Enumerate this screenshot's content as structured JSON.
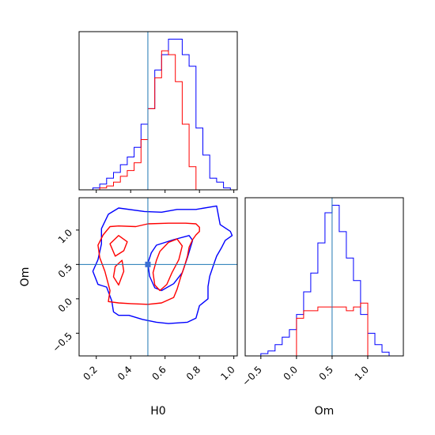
{
  "chart_data": {
    "type": "corner",
    "parameters": [
      "H0",
      "Om"
    ],
    "truths": {
      "H0": 0.5,
      "Om": 0.5
    },
    "colors": {
      "run_a": "#0000ff",
      "run_b": "#ff0000",
      "truth": "#1f77b4",
      "axes": "#000000"
    },
    "h0_marginal": {
      "xlim": [
        0.1,
        1.02
      ],
      "bin_edges": [
        0.1,
        0.14,
        0.18,
        0.22,
        0.26,
        0.3,
        0.34,
        0.38,
        0.42,
        0.46,
        0.5,
        0.54,
        0.58,
        0.62,
        0.66,
        0.7,
        0.74,
        0.78,
        0.82,
        0.86,
        0.9,
        0.94,
        0.98,
        1.02
      ],
      "series": [
        {
          "values": [
            0,
            0,
            0.5,
            1.5,
            3,
            4.5,
            6.5,
            8.5,
            11,
            17,
            21,
            31,
            35,
            39,
            39,
            35,
            32,
            16,
            9,
            3,
            2,
            0.5,
            0
          ]
        },
        {
          "values": [
            0,
            0,
            0,
            0.5,
            1,
            2,
            3.5,
            5,
            7,
            13,
            21,
            29,
            36,
            35,
            28,
            17,
            6,
            0,
            0,
            0,
            0,
            0,
            0
          ]
        }
      ]
    },
    "om_marginal": {
      "xlim": [
        -0.72,
        1.5
      ],
      "bin_edges": [
        -0.6,
        -0.5,
        -0.4,
        -0.3,
        -0.2,
        -0.1,
        0.0,
        0.1,
        0.2,
        0.3,
        0.4,
        0.5,
        0.6,
        0.7,
        0.8,
        0.9,
        1.0,
        1.1,
        1.2,
        1.3,
        1.4
      ],
      "series": [
        {
          "values": [
            0,
            0.6,
            1.3,
            3,
            5,
            7,
            11,
            17,
            22,
            30,
            38,
            40,
            33,
            26,
            20,
            11,
            6,
            3,
            1,
            0
          ]
        },
        {
          "values": [
            0,
            0,
            0,
            0,
            0,
            0,
            10,
            12,
            12,
            13,
            13,
            13,
            13,
            12,
            13,
            14,
            0,
            0,
            0,
            0
          ]
        }
      ]
    },
    "joint": {
      "xlim": [
        0.1,
        1.02
      ],
      "ylim": [
        -0.83,
        1.47
      ],
      "series": [
        {
          "contours": [
            [
              [
                0.33,
                1.32
              ],
              [
                0.48,
                1.27
              ],
              [
                0.58,
                1.26
              ],
              [
                0.67,
                1.3
              ],
              [
                0.78,
                1.3
              ],
              [
                0.9,
                1.35
              ],
              [
                0.92,
                1.08
              ],
              [
                0.98,
                0.98
              ],
              [
                0.99,
                0.92
              ],
              [
                0.95,
                0.85
              ],
              [
                0.93,
                0.75
              ],
              [
                0.9,
                0.62
              ],
              [
                0.88,
                0.48
              ],
              [
                0.86,
                0.33
              ],
              [
                0.85,
                0.18
              ],
              [
                0.85,
                0.0
              ],
              [
                0.8,
                -0.1
              ],
              [
                0.78,
                -0.28
              ],
              [
                0.73,
                -0.34
              ],
              [
                0.62,
                -0.36
              ],
              [
                0.55,
                -0.34
              ],
              [
                0.47,
                -0.3
              ],
              [
                0.39,
                -0.24
              ],
              [
                0.33,
                -0.24
              ],
              [
                0.3,
                -0.19
              ],
              [
                0.29,
                -0.03
              ],
              [
                0.26,
                0.17
              ],
              [
                0.21,
                0.21
              ],
              [
                0.18,
                0.4
              ],
              [
                0.21,
                0.57
              ],
              [
                0.23,
                0.8
              ],
              [
                0.23,
                1.02
              ],
              [
                0.27,
                1.23
              ],
              [
                0.33,
                1.32
              ]
            ],
            [
              [
                0.55,
                0.78
              ],
              [
                0.65,
                0.86
              ],
              [
                0.74,
                0.92
              ],
              [
                0.76,
                0.85
              ],
              [
                0.73,
                0.6
              ],
              [
                0.7,
                0.38
              ],
              [
                0.65,
                0.22
              ],
              [
                0.58,
                0.12
              ],
              [
                0.54,
                0.16
              ],
              [
                0.51,
                0.33
              ],
              [
                0.5,
                0.52
              ],
              [
                0.52,
                0.67
              ],
              [
                0.55,
                0.78
              ]
            ]
          ]
        },
        {
          "contours": [
            [
              [
                0.33,
                1.06
              ],
              [
                0.43,
                1.05
              ],
              [
                0.5,
                1.09
              ],
              [
                0.62,
                1.1
              ],
              [
                0.72,
                1.1
              ],
              [
                0.78,
                1.09
              ],
              [
                0.8,
                1.04
              ],
              [
                0.8,
                0.98
              ],
              [
                0.78,
                0.93
              ],
              [
                0.76,
                0.86
              ],
              [
                0.74,
                0.75
              ],
              [
                0.73,
                0.62
              ],
              [
                0.71,
                0.45
              ],
              [
                0.69,
                0.31
              ],
              [
                0.67,
                0.14
              ],
              [
                0.65,
                0.02
              ],
              [
                0.58,
                -0.06
              ],
              [
                0.5,
                -0.08
              ],
              [
                0.4,
                -0.07
              ],
              [
                0.33,
                -0.06
              ],
              [
                0.27,
                -0.04
              ],
              [
                0.28,
                0.12
              ],
              [
                0.25,
                0.4
              ],
              [
                0.22,
                0.6
              ],
              [
                0.21,
                0.78
              ],
              [
                0.24,
                0.93
              ],
              [
                0.28,
                1.05
              ],
              [
                0.33,
                1.06
              ]
            ],
            [
              [
                0.57,
                0.69
              ],
              [
                0.62,
                0.82
              ],
              [
                0.67,
                0.87
              ],
              [
                0.7,
                0.77
              ],
              [
                0.68,
                0.57
              ],
              [
                0.64,
                0.38
              ],
              [
                0.61,
                0.21
              ],
              [
                0.57,
                0.12
              ],
              [
                0.54,
                0.2
              ],
              [
                0.53,
                0.38
              ],
              [
                0.55,
                0.56
              ],
              [
                0.57,
                0.69
              ]
            ],
            [
              [
                0.28,
                0.8
              ],
              [
                0.33,
                0.92
              ],
              [
                0.38,
                0.83
              ],
              [
                0.36,
                0.7
              ],
              [
                0.31,
                0.62
              ],
              [
                0.28,
                0.8
              ]
            ],
            [
              [
                0.31,
                0.47
              ],
              [
                0.35,
                0.56
              ],
              [
                0.36,
                0.4
              ],
              [
                0.33,
                0.2
              ],
              [
                0.3,
                0.32
              ],
              [
                0.31,
                0.47
              ]
            ]
          ]
        }
      ]
    },
    "axes": {
      "h0_marginal": {
        "xticks": [
          0.2,
          0.4,
          0.6,
          0.8,
          1.0
        ],
        "xticklabels": []
      },
      "joint": {
        "xticks": [
          0.2,
          0.4,
          0.6,
          0.8,
          1.0
        ],
        "xticklabels": [
          "0.2",
          "0.4",
          "0.6",
          "0.8",
          "1.0"
        ],
        "yticks": [
          -0.5,
          0.0,
          0.5,
          1.0
        ],
        "yticklabels": [
          "−0.5",
          "0.0",
          "0.5",
          "1.0"
        ],
        "xlabel": "H0",
        "ylabel": "Om"
      },
      "om_marginal": {
        "xticks": [
          -0.5,
          0.0,
          0.5,
          1.0
        ],
        "xticklabels": [
          "−0.5",
          "0.0",
          "0.5",
          "1.0"
        ],
        "xlabel": "Om"
      }
    }
  }
}
